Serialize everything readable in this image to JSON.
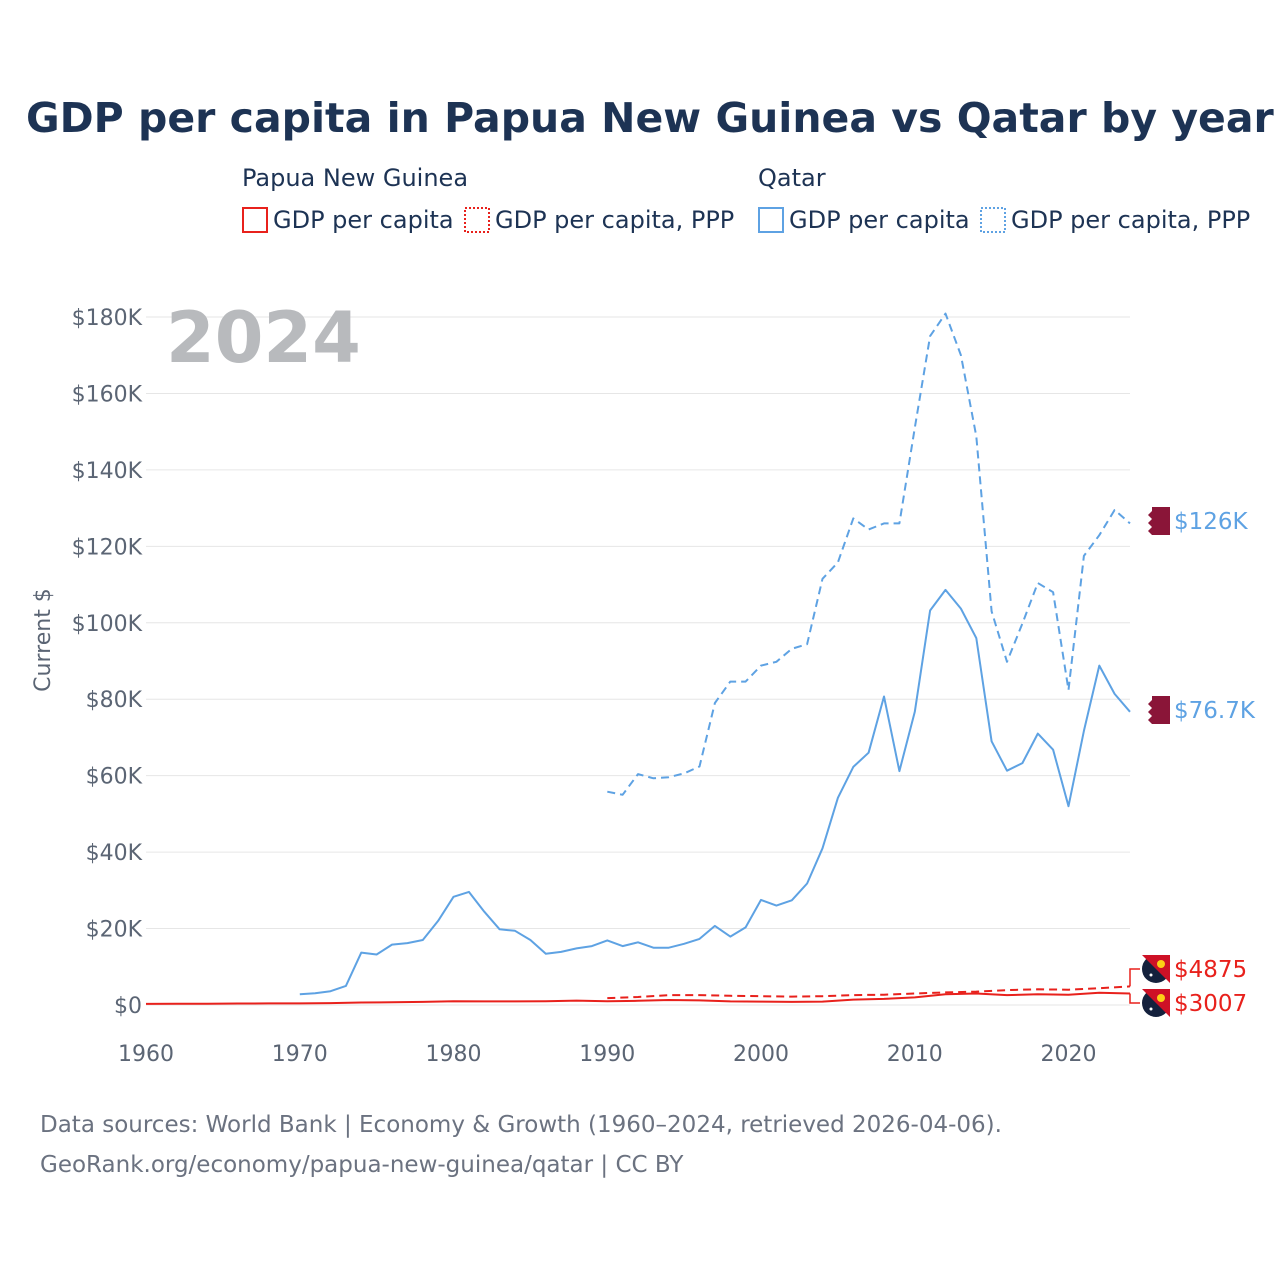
{
  "chart_data": {
    "type": "line",
    "title": "GDP per capita in Papua New Guinea vs Qatar by year",
    "ylabel": "Current $",
    "xlabel": "",
    "year_watermark": "2024",
    "xlim": [
      1960,
      2024
    ],
    "ylim": [
      0,
      180000
    ],
    "x_ticks": [
      1960,
      1970,
      1980,
      1990,
      2000,
      2010,
      2020
    ],
    "x_tick_labels": [
      "1960",
      "1970",
      "1980",
      "1990",
      "2000",
      "2010",
      "2020"
    ],
    "y_ticks": [
      0,
      20000,
      40000,
      60000,
      80000,
      100000,
      120000,
      140000,
      160000,
      180000
    ],
    "y_tick_labels": [
      "$0",
      "$20K",
      "$40K",
      "$60K",
      "$80K",
      "$100K",
      "$120K",
      "$140K",
      "$160K",
      "$180K"
    ],
    "grid": true,
    "legend": {
      "placement": "top",
      "groups": [
        {
          "name": "Papua New Guinea",
          "items": [
            "GDP per capita",
            "GDP per capita, PPP"
          ]
        },
        {
          "name": "Qatar",
          "items": [
            "GDP per capita",
            "GDP per capita, PPP"
          ]
        }
      ]
    },
    "series": [
      {
        "name": "Papua New Guinea — GDP per capita",
        "color": "#e8211c",
        "dash": "solid",
        "end_label": "$3007",
        "points": [
          [
            1960,
            300
          ],
          [
            1962,
            320
          ],
          [
            1964,
            340
          ],
          [
            1966,
            380
          ],
          [
            1968,
            420
          ],
          [
            1970,
            430
          ],
          [
            1972,
            500
          ],
          [
            1974,
            650
          ],
          [
            1976,
            700
          ],
          [
            1978,
            800
          ],
          [
            1980,
            1000
          ],
          [
            1982,
            950
          ],
          [
            1984,
            950
          ],
          [
            1986,
            1000
          ],
          [
            1988,
            1150
          ],
          [
            1990,
            1000
          ],
          [
            1992,
            1100
          ],
          [
            1994,
            1300
          ],
          [
            1996,
            1200
          ],
          [
            1998,
            950
          ],
          [
            2000,
            900
          ],
          [
            2002,
            800
          ],
          [
            2004,
            900
          ],
          [
            2006,
            1400
          ],
          [
            2008,
            1600
          ],
          [
            2010,
            2000
          ],
          [
            2012,
            2800
          ],
          [
            2014,
            3000
          ],
          [
            2016,
            2600
          ],
          [
            2018,
            2800
          ],
          [
            2020,
            2700
          ],
          [
            2022,
            3200
          ],
          [
            2024,
            3007
          ]
        ]
      },
      {
        "name": "Papua New Guinea — GDP per capita, PPP",
        "color": "#e8211c",
        "dash": "dashed",
        "end_label": "$4875",
        "points": [
          [
            1990,
            1800
          ],
          [
            1992,
            2100
          ],
          [
            1994,
            2600
          ],
          [
            1996,
            2600
          ],
          [
            1998,
            2400
          ],
          [
            2000,
            2300
          ],
          [
            2002,
            2200
          ],
          [
            2004,
            2300
          ],
          [
            2006,
            2600
          ],
          [
            2008,
            2700
          ],
          [
            2010,
            3000
          ],
          [
            2012,
            3300
          ],
          [
            2014,
            3500
          ],
          [
            2016,
            3900
          ],
          [
            2018,
            4100
          ],
          [
            2020,
            4000
          ],
          [
            2022,
            4400
          ],
          [
            2024,
            4875
          ]
        ]
      },
      {
        "name": "Qatar — GDP per capita",
        "color": "#5ea2e3",
        "dash": "solid",
        "end_label": "$76.7K",
        "points": [
          [
            1970,
            2800
          ],
          [
            1971,
            3100
          ],
          [
            1972,
            3600
          ],
          [
            1973,
            5000
          ],
          [
            1974,
            13700
          ],
          [
            1975,
            13200
          ],
          [
            1976,
            15800
          ],
          [
            1977,
            16200
          ],
          [
            1978,
            17000
          ],
          [
            1979,
            22000
          ],
          [
            1980,
            28300
          ],
          [
            1981,
            29600
          ],
          [
            1982,
            24400
          ],
          [
            1983,
            19800
          ],
          [
            1984,
            19400
          ],
          [
            1985,
            17000
          ],
          [
            1986,
            13400
          ],
          [
            1987,
            13900
          ],
          [
            1988,
            14800
          ],
          [
            1989,
            15400
          ],
          [
            1990,
            16900
          ],
          [
            1991,
            15400
          ],
          [
            1992,
            16400
          ],
          [
            1993,
            15000
          ],
          [
            1994,
            15000
          ],
          [
            1995,
            16000
          ],
          [
            1996,
            17300
          ],
          [
            1997,
            20700
          ],
          [
            1998,
            17900
          ],
          [
            1999,
            20300
          ],
          [
            2000,
            27500
          ],
          [
            2001,
            26000
          ],
          [
            2002,
            27400
          ],
          [
            2003,
            31800
          ],
          [
            2004,
            41000
          ],
          [
            2005,
            54200
          ],
          [
            2006,
            62300
          ],
          [
            2007,
            66000
          ],
          [
            2008,
            80700
          ],
          [
            2009,
            61200
          ],
          [
            2010,
            76700
          ],
          [
            2011,
            103200
          ],
          [
            2012,
            108600
          ],
          [
            2013,
            103700
          ],
          [
            2014,
            96000
          ],
          [
            2015,
            69000
          ],
          [
            2016,
            61300
          ],
          [
            2017,
            63300
          ],
          [
            2018,
            71000
          ],
          [
            2019,
            66800
          ],
          [
            2020,
            52000
          ],
          [
            2021,
            71700
          ],
          [
            2022,
            88800
          ],
          [
            2023,
            81400
          ],
          [
            2024,
            76700
          ]
        ]
      },
      {
        "name": "Qatar — GDP per capita, PPP",
        "color": "#5ea2e3",
        "dash": "dashed",
        "end_label": "$126K",
        "points": [
          [
            1990,
            55800
          ],
          [
            1991,
            55000
          ],
          [
            1992,
            60400
          ],
          [
            1993,
            59300
          ],
          [
            1994,
            59600
          ],
          [
            1995,
            60600
          ],
          [
            1996,
            62400
          ],
          [
            1997,
            79000
          ],
          [
            1998,
            84600
          ],
          [
            1999,
            84600
          ],
          [
            2000,
            88800
          ],
          [
            2001,
            89800
          ],
          [
            2002,
            93200
          ],
          [
            2003,
            94400
          ],
          [
            2004,
            111500
          ],
          [
            2005,
            115800
          ],
          [
            2006,
            127300
          ],
          [
            2007,
            124400
          ],
          [
            2008,
            126000
          ],
          [
            2009,
            126000
          ],
          [
            2010,
            151000
          ],
          [
            2011,
            175000
          ],
          [
            2012,
            180900
          ],
          [
            2013,
            170000
          ],
          [
            2014,
            148800
          ],
          [
            2015,
            103000
          ],
          [
            2016,
            89800
          ],
          [
            2017,
            99800
          ],
          [
            2018,
            110400
          ],
          [
            2019,
            108000
          ],
          [
            2020,
            82400
          ],
          [
            2021,
            117500
          ],
          [
            2022,
            122900
          ],
          [
            2023,
            129500
          ],
          [
            2024,
            126000
          ]
        ]
      }
    ]
  },
  "footer": {
    "line1": "Data sources: World Bank | Economy & Growth (1960–2024, retrieved 2026-04-06).",
    "line2": "GeoRank.org/economy/papua-new-guinea/qatar | CC BY"
  },
  "colors": {
    "png": "#e8211c",
    "qatar": "#5ea2e3",
    "qatar_flag": "#8a1538",
    "png_flag_dark": "#14213d"
  }
}
